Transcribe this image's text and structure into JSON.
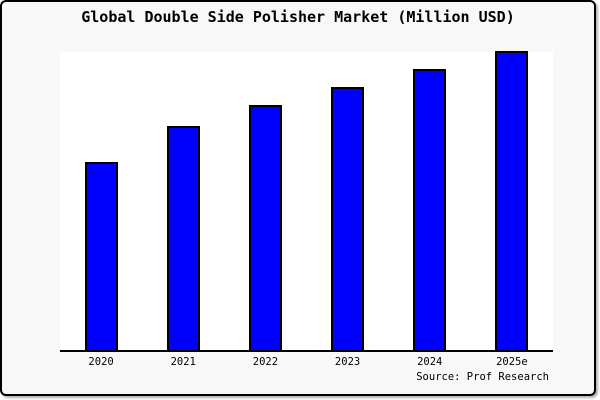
{
  "frame": {
    "background": "#f8f8f8",
    "border_color": "#000000"
  },
  "chart_data": {
    "type": "bar",
    "title": "Global Double Side Polisher Market (Million USD)",
    "categories": [
      "2020",
      "2021",
      "2022",
      "2023",
      "2024",
      "2025e"
    ],
    "values": [
      63,
      75,
      82,
      88,
      94,
      100
    ],
    "xlabel": "",
    "ylabel": "",
    "ylim": [
      0,
      100
    ],
    "y_axis_tick_labels_visible": false,
    "gridlines": false,
    "legend": false,
    "plot_background": "#ffffff",
    "bar_color": "#0000ff",
    "bar_border_color": "#000000",
    "source": "Source: Prof Research"
  }
}
